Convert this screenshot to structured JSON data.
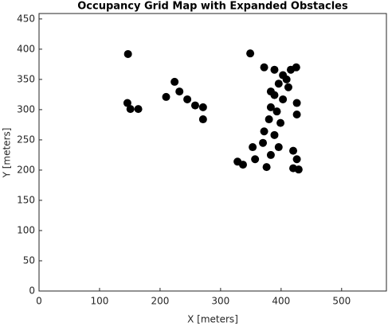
{
  "chart_data": {
    "type": "scatter",
    "title": "Occupancy Grid Map with Expanded Obstacles",
    "x_label": "X [meters]",
    "y_label": "Y [meters]",
    "color": "#000000",
    "x": [
      147,
      146,
      151,
      164,
      210,
      224,
      232,
      245,
      258,
      271,
      271,
      349,
      372,
      389,
      425,
      328,
      337,
      357,
      353,
      370,
      372,
      380,
      383,
      389,
      396,
      403,
      409,
      416,
      376,
      383,
      396,
      389,
      399,
      393,
      383,
      420,
      426,
      429,
      420,
      426,
      426,
      403,
      412
    ],
    "values": [
      392,
      311,
      301,
      301,
      321,
      346,
      330,
      317,
      307,
      304,
      284,
      393,
      370,
      366,
      370,
      214,
      209,
      218,
      238,
      245,
      264,
      284,
      304,
      324,
      343,
      357,
      350,
      366,
      205,
      225,
      238,
      258,
      278,
      297,
      330,
      232,
      218,
      201,
      203,
      311,
      292,
      317,
      337
    ],
    "xlim": [
      0,
      574
    ],
    "ylim": [
      0,
      459
    ],
    "xticks": [
      0,
      100,
      200,
      300,
      400,
      500
    ],
    "yticks": [
      0,
      50,
      100,
      150,
      200,
      250,
      300,
      350,
      400,
      450
    ],
    "grid": false
  }
}
